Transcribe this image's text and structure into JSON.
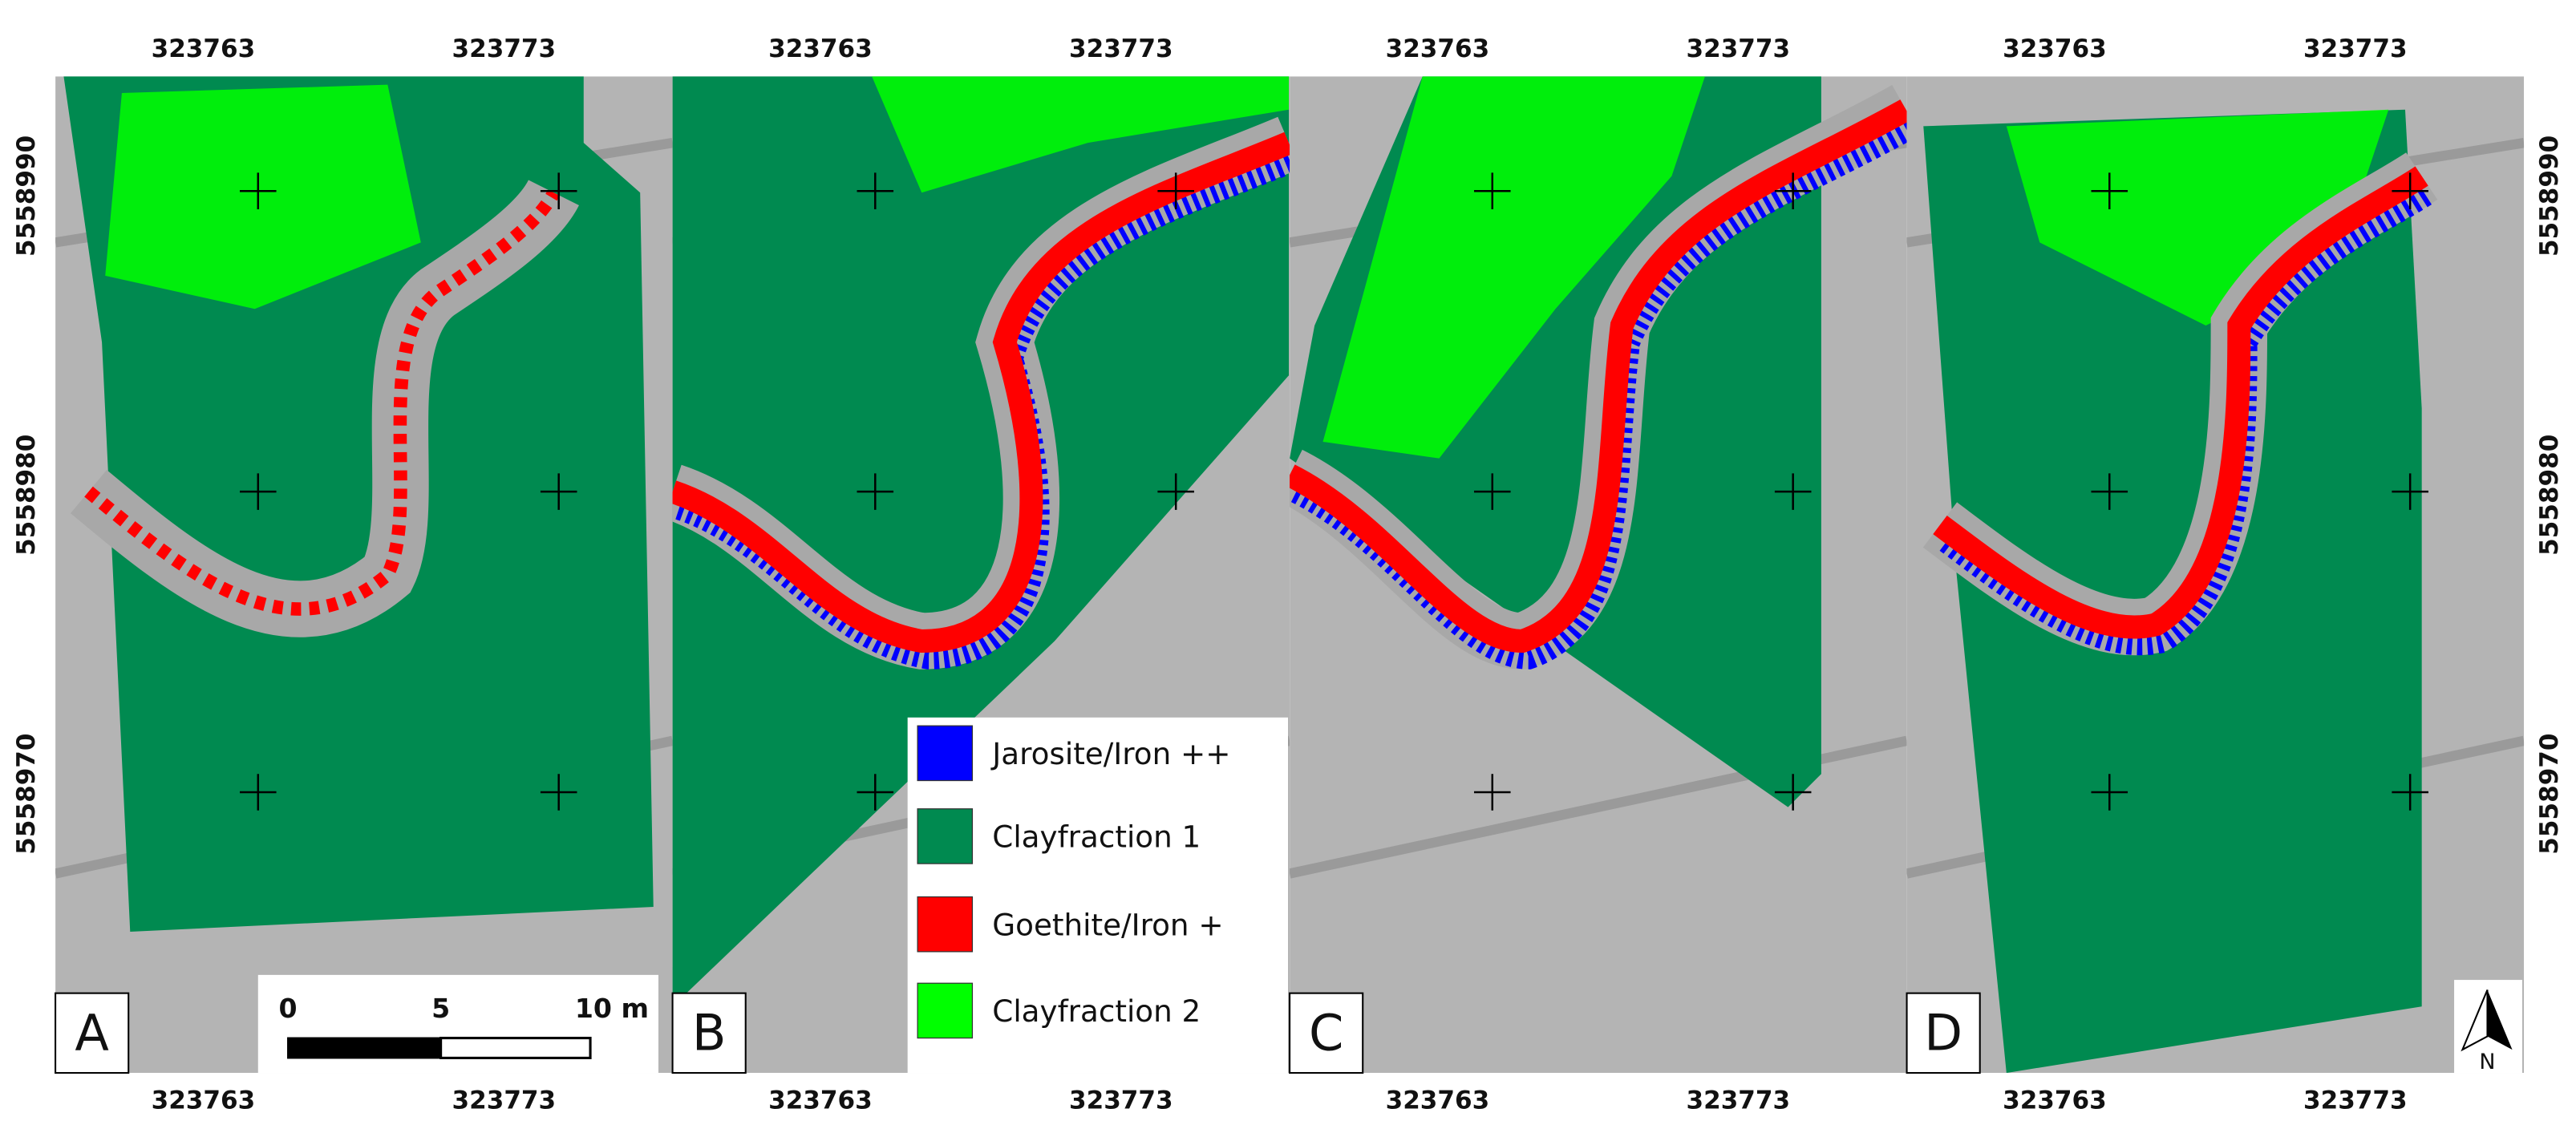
{
  "panels": [
    {
      "label": "A"
    },
    {
      "label": "B"
    },
    {
      "label": "C"
    },
    {
      "label": "D"
    }
  ],
  "easting_labels": [
    "323763",
    "323773"
  ],
  "northing_labels": [
    "5558990",
    "5558980",
    "5558970"
  ],
  "legend": {
    "items": [
      {
        "label": "Jarosite/Iron ++",
        "color": "#0000ff"
      },
      {
        "label": "Clayfraction 1",
        "color": "#008a50"
      },
      {
        "label": "Goethite/Iron +",
        "color": "#ff0000"
      },
      {
        "label": "Clayfraction 2",
        "color": "#00ff00"
      }
    ]
  },
  "scale_bar": {
    "labels": [
      "0",
      "5",
      "10 m"
    ]
  },
  "north_arrow": {
    "label": "N"
  }
}
